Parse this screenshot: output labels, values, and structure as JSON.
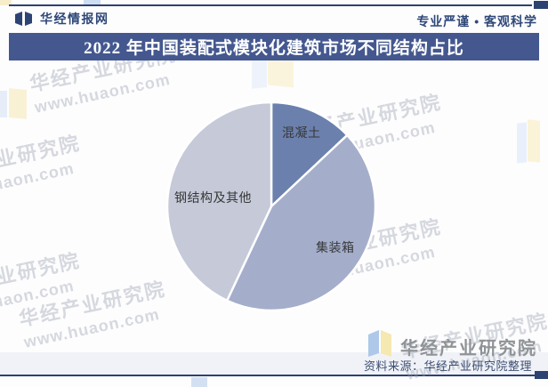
{
  "header": {
    "brand": "华经情报网",
    "slogan": "专业严谨 • 客观科学"
  },
  "title": "2022 年中国装配式模块化建筑市场不同结构占比",
  "chart_data": {
    "type": "pie",
    "title": "2022 年中国装配式模块化建筑市场不同结构占比",
    "labels": [
      "混凝土",
      "集装箱",
      "钢结构及其他"
    ],
    "values": [
      13,
      44,
      43
    ],
    "values_estimated_from_angles": true,
    "colors": [
      "#6b80ad",
      "#a4aecb",
      "#c5c9d8"
    ],
    "start_angle_deg": 0,
    "direction": "clockwise",
    "legend": "none (category labels inside slices)"
  },
  "watermark": {
    "line1": "华经产业研究院",
    "line2": "www.huaon.com"
  },
  "footer": {
    "logo_text": "华经产业研究院",
    "source": "资料来源：华经产业研究院整理"
  },
  "colors": {
    "accent_navy": "#2c4270",
    "title_bar_bg": "#44588f",
    "footer_band_bg": "#f0f2f7",
    "header_text": "#2f4878",
    "source_text": "#3e4e72",
    "logo_gray_text": "#8f9396"
  }
}
